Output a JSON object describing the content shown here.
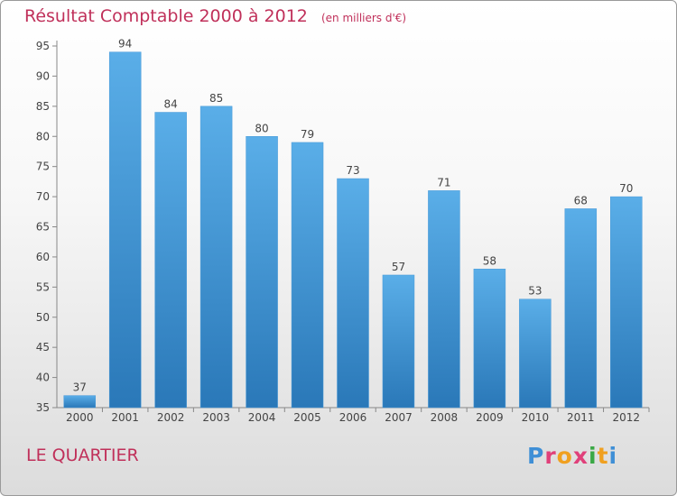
{
  "header": {
    "title": "Résultat Comptable 2000 à 2012",
    "subtitle": "(en milliers d'€)"
  },
  "footer": {
    "commune": "LE QUARTIER",
    "logo": "Proxiti"
  },
  "colors": {
    "title": "#c0305a",
    "bar_light": "#5aaee8",
    "bar_dark": "#2a78b8",
    "logo_letters": [
      "#3f8fd6",
      "#e0407a",
      "#f0a020",
      "#e0407a",
      "#3aa845",
      "#f0a020",
      "#3f8fd6"
    ]
  },
  "chart_data": {
    "type": "bar",
    "categories": [
      "2000",
      "2001",
      "2002",
      "2003",
      "2004",
      "2005",
      "2006",
      "2007",
      "2008",
      "2009",
      "2010",
      "2011",
      "2012"
    ],
    "values": [
      37,
      94,
      84,
      85,
      80,
      79,
      73,
      57,
      71,
      58,
      53,
      68,
      70
    ],
    "ylim": [
      35,
      95
    ],
    "yticks": [
      35,
      40,
      45,
      50,
      55,
      60,
      65,
      70,
      75,
      80,
      85,
      90,
      95
    ],
    "grid": false,
    "data_labels": true
  }
}
